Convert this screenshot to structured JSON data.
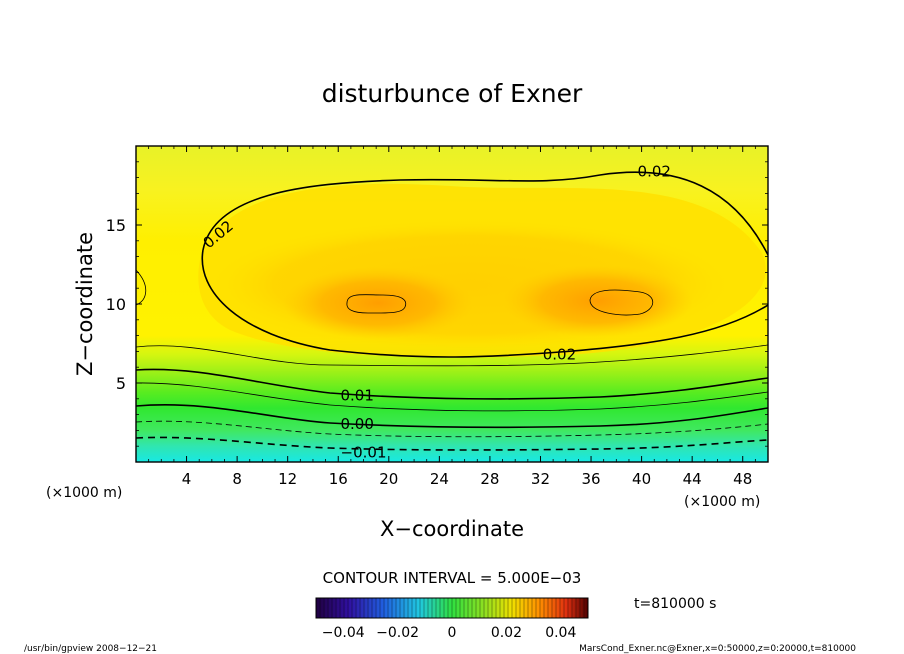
{
  "chart_data": {
    "type": "contour",
    "title": "disturbunce of Exner",
    "xlabel": "X−coordinate",
    "ylabel": "Z−coordinate",
    "x_unit_left": "(×1000 m)",
    "x_unit_right": "(×1000 m)",
    "xlim": [
      0,
      50
    ],
    "ylim": [
      0,
      20
    ],
    "x_ticks": [
      4,
      8,
      12,
      16,
      20,
      24,
      28,
      32,
      36,
      40,
      44,
      48
    ],
    "y_ticks": [
      5,
      10,
      15
    ],
    "contour_interval": 0.005,
    "contour_labels": [
      {
        "text": "0.02",
        "x": 41.0,
        "y": 18.4,
        "rot": 0
      },
      {
        "text": "0.02",
        "x": 6.5,
        "y": 14.4,
        "rot": -40
      },
      {
        "text": "0.02",
        "x": 33.5,
        "y": 6.8,
        "rot": 0
      },
      {
        "text": "0.01",
        "x": 17.5,
        "y": 4.2,
        "rot": 0
      },
      {
        "text": "0.00",
        "x": 17.5,
        "y": 2.4,
        "rot": 0
      },
      {
        "text": "−0.01",
        "x": 18.0,
        "y": 0.6,
        "rot": 0
      }
    ],
    "fields": {
      "top_value": 0.017,
      "plateau_value": 0.022,
      "bottom_value": -0.015,
      "maxima": [
        {
          "x": 19.0,
          "z": 10.0,
          "value": 0.031
        },
        {
          "x": 38.0,
          "z": 10.0,
          "value": 0.031
        }
      ]
    },
    "colorbar": {
      "min": -0.05,
      "max": 0.05,
      "tick_values": [
        -0.04,
        -0.02,
        0,
        0.02,
        0.04
      ],
      "tick_labels": [
        "−0.04",
        "−0.02",
        "0",
        "0.02",
        "0.04"
      ]
    }
  },
  "texts": {
    "contour_interval": "CONTOUR INTERVAL = 5.000E−03",
    "time": "t=810000 s",
    "footer_left": "/usr/bin/gpview   2008−12−21",
    "footer_right": "MarsCond_Exner.nc@Exner,x=0:50000,z=0:20000,t=810000"
  },
  "colors": {
    "cyan": "#20e8d8",
    "green": "#28e030",
    "yellow": "#fff100",
    "orange": "#ffb000",
    "dark_orange": "#ff9a00"
  }
}
